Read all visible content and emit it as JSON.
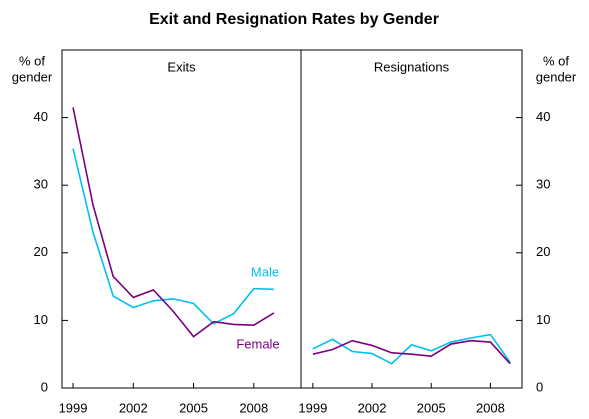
{
  "title": "Exit and Resignation Rates by Gender",
  "chart_data": [
    {
      "type": "line",
      "title": "Exits",
      "ylabel": [
        "% of",
        "gender"
      ],
      "x": [
        1999,
        2000,
        2001,
        2002,
        2003,
        2004,
        2005,
        2006,
        2007,
        2008,
        2009
      ],
      "xlim": [
        1998.45,
        2010.35
      ],
      "xticks": [
        1999,
        2002,
        2005,
        2008
      ],
      "ylim": [
        0,
        50
      ],
      "yticks": [
        0,
        10,
        20,
        30,
        40
      ],
      "series": [
        {
          "name": "Male",
          "color": "#00c0f0",
          "values": [
            35.4,
            23,
            13.6,
            11.9,
            12.9,
            13.2,
            12.5,
            9.5,
            11,
            14.7,
            14.6
          ]
        },
        {
          "name": "Female",
          "color": "#7b0080",
          "values": [
            41.5,
            27,
            16.5,
            13.4,
            14.5,
            11.3,
            7.6,
            9.8,
            9.4,
            9.3,
            11.1
          ]
        }
      ]
    },
    {
      "type": "line",
      "title": "Resignations",
      "ylabel": [
        "% of",
        "gender"
      ],
      "x": [
        1999,
        2000,
        2001,
        2002,
        2003,
        2004,
        2005,
        2006,
        2007,
        2008,
        2009
      ],
      "xlim": [
        1998.4,
        2009.6
      ],
      "xticks": [
        1999,
        2002,
        2005,
        2008
      ],
      "ylim": [
        0,
        50
      ],
      "yticks": [
        0,
        10,
        20,
        30,
        40
      ],
      "series": [
        {
          "name": "Male",
          "color": "#00c0f0",
          "values": [
            5.8,
            7.2,
            5.4,
            5.1,
            3.6,
            6.4,
            5.5,
            6.8,
            7.4,
            7.9,
            3.8
          ]
        },
        {
          "name": "Female",
          "color": "#7b0080",
          "values": [
            5.0,
            5.7,
            7.0,
            6.3,
            5.2,
            5.0,
            4.7,
            6.5,
            7.0,
            6.8,
            3.6
          ]
        }
      ]
    }
  ]
}
